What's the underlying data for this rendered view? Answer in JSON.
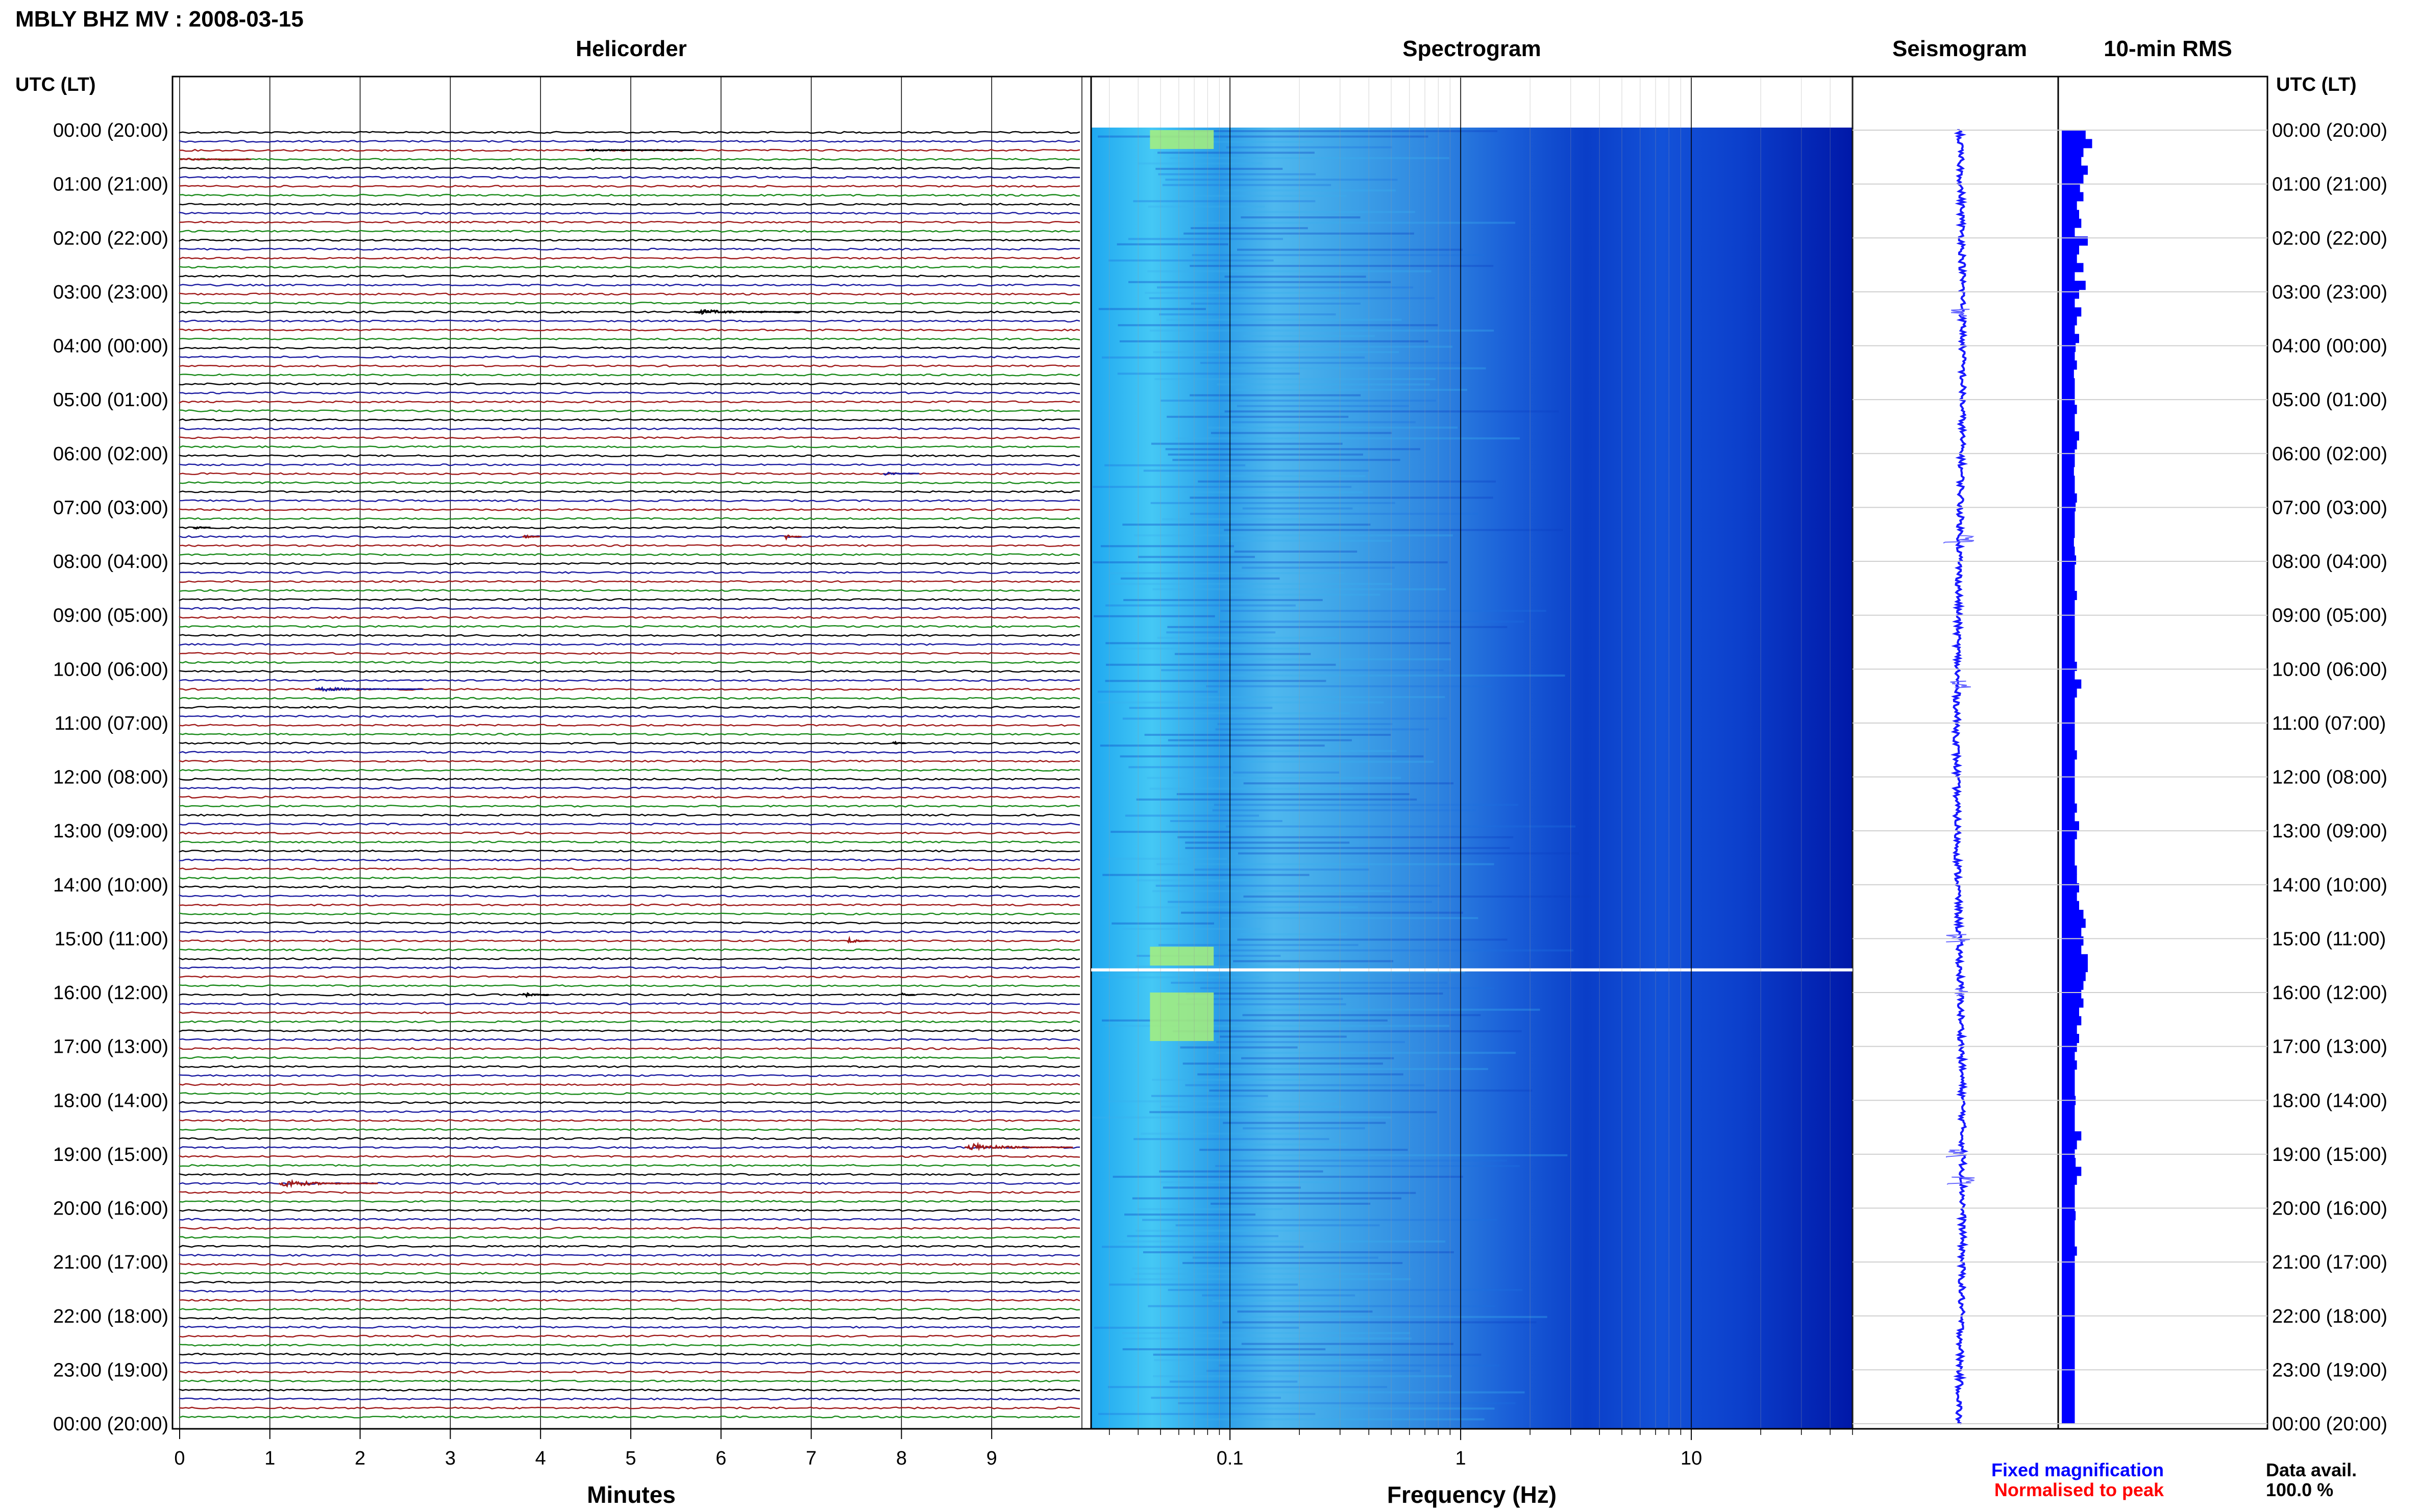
{
  "chart_data": {
    "type": "heatmap",
    "title": "MBLY BHZ MV : 2008-03-15",
    "time_axis_label": "UTC (LT)",
    "time_labels": [
      "00:00 (20:00)",
      "01:00 (21:00)",
      "02:00 (22:00)",
      "03:00 (23:00)",
      "04:00 (00:00)",
      "05:00 (01:00)",
      "06:00 (02:00)",
      "07:00 (03:00)",
      "08:00 (04:00)",
      "09:00 (05:00)",
      "10:00 (06:00)",
      "11:00 (07:00)",
      "12:00 (08:00)",
      "13:00 (09:00)",
      "14:00 (10:00)",
      "15:00 (11:00)",
      "16:00 (12:00)",
      "17:00 (13:00)",
      "18:00 (14:00)",
      "19:00 (15:00)",
      "20:00 (16:00)",
      "21:00 (17:00)",
      "22:00 (18:00)",
      "23:00 (19:00)",
      "00:00 (20:00)"
    ],
    "panels": {
      "helicorder": {
        "title": "Helicorder",
        "xlabel": "Minutes",
        "xlim": [
          0,
          10
        ],
        "xticks": [
          "0",
          "1",
          "2",
          "3",
          "4",
          "5",
          "6",
          "7",
          "8",
          "9"
        ],
        "rows_per_hour": 6,
        "trace_colors": [
          "#000000",
          "#1a1aa0",
          "#a01a1a",
          "#1a8a1a"
        ],
        "events": [
          {
            "hour": 0.33,
            "minute": 4.5,
            "duration": 1.2,
            "amp": 0.25,
            "color": "#000000"
          },
          {
            "hour": 0.5,
            "minute": 0.0,
            "duration": 0.8,
            "amp": 0.3,
            "color": "#a01a1a"
          },
          {
            "hour": 3.33,
            "minute": 5.7,
            "duration": 1.2,
            "amp": 0.6,
            "color": "#000000"
          },
          {
            "hour": 6.33,
            "minute": 7.8,
            "duration": 0.4,
            "amp": 0.5,
            "color": "#1a1aa0"
          },
          {
            "hour": 7.33,
            "minute": 0.15,
            "duration": 0.2,
            "amp": 0.6,
            "color": "#000000"
          },
          {
            "hour": 7.5,
            "minute": 3.8,
            "duration": 0.2,
            "amp": 0.9,
            "color": "#a01a1a"
          },
          {
            "hour": 7.5,
            "minute": 6.7,
            "duration": 0.2,
            "amp": 0.9,
            "color": "#a01a1a"
          },
          {
            "hour": 10.33,
            "minute": 1.5,
            "duration": 1.2,
            "amp": 0.5,
            "color": "#1a1aa0"
          },
          {
            "hour": 11.33,
            "minute": 7.9,
            "duration": 0.15,
            "amp": 0.6,
            "color": "#000000"
          },
          {
            "hour": 15.0,
            "minute": 7.4,
            "duration": 0.25,
            "amp": 0.9,
            "color": "#a01a1a"
          },
          {
            "hour": 16.0,
            "minute": 3.8,
            "duration": 0.3,
            "amp": 0.7,
            "color": "#000000"
          },
          {
            "hour": 16.0,
            "minute": 8.0,
            "duration": 0.15,
            "amp": 0.5,
            "color": "#000000"
          },
          {
            "hour": 18.83,
            "minute": 8.7,
            "duration": 1.2,
            "amp": 1.0,
            "color": "#a01a1a"
          },
          {
            "hour": 19.5,
            "minute": 1.1,
            "duration": 1.1,
            "amp": 1.0,
            "color": "#a01a1a"
          }
        ]
      },
      "spectrogram": {
        "title": "Spectrogram",
        "xlabel": "Frequency (Hz)",
        "xscale": "log",
        "xlim": [
          0.025,
          50
        ],
        "xticks": [
          "0.1",
          "1",
          "10"
        ],
        "gap_hour": 15.58
      },
      "seismogram": {
        "title": "Seismogram",
        "spikes": [
          {
            "hour": 3.4,
            "amp": 0.4
          },
          {
            "hour": 7.6,
            "amp": 0.7
          },
          {
            "hour": 10.3,
            "amp": 0.4
          },
          {
            "hour": 15.0,
            "amp": 0.5
          },
          {
            "hour": 16.0,
            "amp": 0.3
          },
          {
            "hour": 19.0,
            "amp": 0.5
          },
          {
            "hour": 19.5,
            "amp": 0.6
          }
        ]
      },
      "rms": {
        "title": "10-min RMS",
        "values": [
          0.55,
          0.7,
          0.5,
          0.45,
          0.6,
          0.5,
          0.42,
          0.5,
          0.35,
          0.4,
          0.45,
          0.3,
          0.6,
          0.4,
          0.35,
          0.5,
          0.3,
          0.55,
          0.4,
          0.3,
          0.45,
          0.35,
          0.3,
          0.4,
          0.32,
          0.3,
          0.35,
          0.28,
          0.3,
          0.3,
          0.3,
          0.35,
          0.3,
          0.3,
          0.4,
          0.35,
          0.3,
          0.3,
          0.28,
          0.3,
          0.3,
          0.35,
          0.32,
          0.3,
          0.3,
          0.3,
          0.28,
          0.3,
          0.33,
          0.3,
          0.3,
          0.3,
          0.35,
          0.3,
          0.3,
          0.3,
          0.3,
          0.3,
          0.3,
          0.3,
          0.35,
          0.3,
          0.45,
          0.35,
          0.3,
          0.3,
          0.3,
          0.3,
          0.3,
          0.3,
          0.35,
          0.3,
          0.3,
          0.3,
          0.3,
          0.3,
          0.35,
          0.3,
          0.4,
          0.35,
          0.3,
          0.3,
          0.3,
          0.35,
          0.35,
          0.4,
          0.35,
          0.4,
          0.5,
          0.55,
          0.45,
          0.5,
          0.45,
          0.6,
          0.6,
          0.55,
          0.5,
          0.45,
          0.5,
          0.4,
          0.45,
          0.35,
          0.4,
          0.35,
          0.3,
          0.35,
          0.3,
          0.3,
          0.3,
          0.32,
          0.3,
          0.3,
          0.3,
          0.45,
          0.35,
          0.3,
          0.32,
          0.45,
          0.35,
          0.3,
          0.3,
          0.3,
          0.32,
          0.3,
          0.3,
          0.3,
          0.35,
          0.3,
          0.3,
          0.3,
          0.3,
          0.3,
          0.3,
          0.3,
          0.3,
          0.3,
          0.3,
          0.3,
          0.3,
          0.3,
          0.3,
          0.3,
          0.3,
          0.3,
          0.3,
          0.3
        ]
      }
    },
    "legend": {
      "fixed": "Fixed magnification",
      "fixed_color": "#0000ff",
      "normalised": "Normalised to peak",
      "normalised_color": "#ff0000",
      "avail_label": "Data avail.",
      "avail_value": "100.0 %"
    }
  }
}
